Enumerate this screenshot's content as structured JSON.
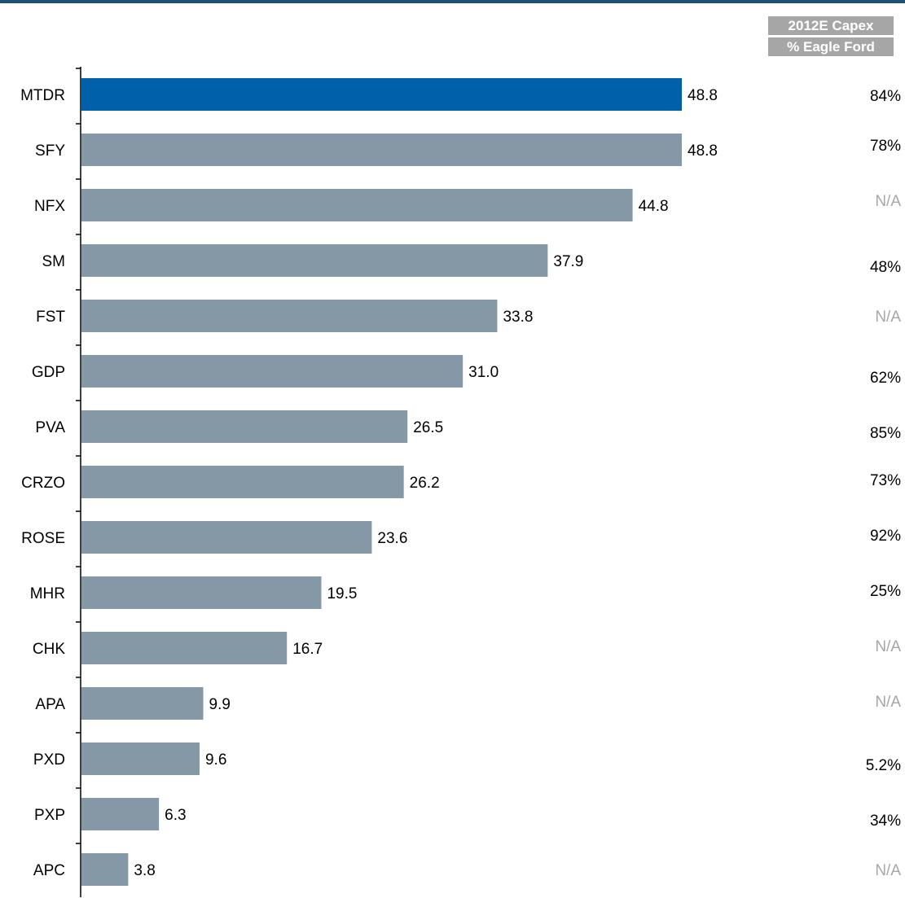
{
  "colors": {
    "rule": "#1f4e79",
    "highlight": "#0060aa",
    "bar": "#8499a5",
    "header_bg": "#a6a6a6",
    "pct_text": "#000000",
    "na_text": "#a6a6a6",
    "axis": "#000000"
  },
  "side_header": {
    "line1": "2012E Capex",
    "line2": "% Eagle Ford"
  },
  "chart_data": {
    "type": "bar",
    "orientation": "horizontal",
    "categories": [
      "MTDR",
      "SFY",
      "NFX",
      "SM",
      "FST",
      "GDP",
      "PVA",
      "CRZO",
      "ROSE",
      "MHR",
      "CHK",
      "APA",
      "PXD",
      "PXP",
      "APC"
    ],
    "values": [
      48.8,
      48.8,
      44.8,
      37.9,
      33.8,
      31.0,
      26.5,
      26.2,
      23.6,
      19.5,
      16.7,
      9.9,
      9.6,
      6.3,
      3.8
    ],
    "value_labels": [
      "48.8",
      "48.8",
      "44.8",
      "37.9",
      "33.8",
      "31.0",
      "26.5",
      "26.2",
      "23.6",
      "19.5",
      "16.7",
      "9.9",
      "9.6",
      "6.3",
      "3.8"
    ],
    "highlight_category": "MTDR",
    "xlim": [
      0,
      60
    ],
    "eagle_ford_pct": [
      "84%",
      "78%",
      "N/A",
      "48%",
      "N/A",
      "62%",
      "85%",
      "73%",
      "92%",
      "25%",
      "N/A",
      "N/A",
      "5.2%",
      "34%",
      "N/A"
    ]
  }
}
